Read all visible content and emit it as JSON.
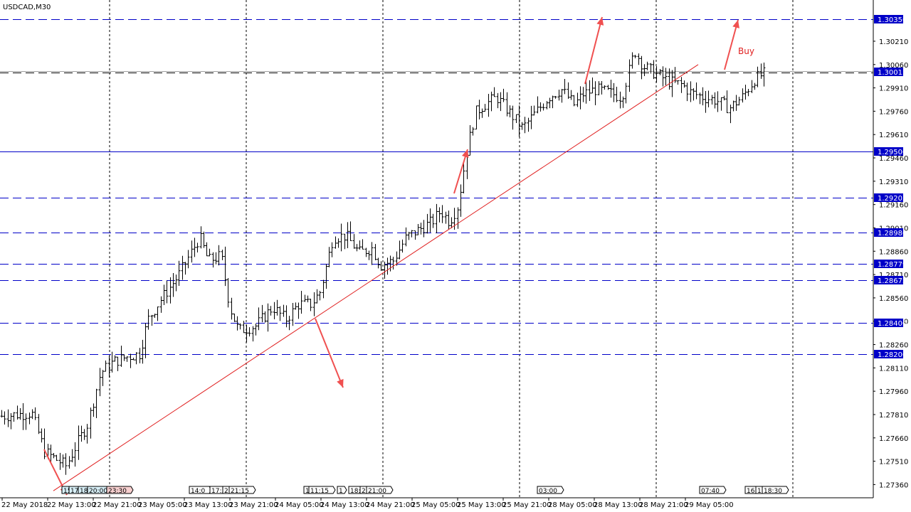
{
  "chart_data": {
    "type": "candlestick",
    "title": "USDCAD,M30",
    "y_axis": {
      "min": 1.27275,
      "max": 1.30475,
      "ticks": [
        1.3021,
        1.3006,
        1.2991,
        1.2976,
        1.2961,
        1.2946,
        1.2931,
        1.2916,
        1.2901,
        1.2886,
        1.2871,
        1.2856,
        1.2841,
        1.2826,
        1.2811,
        1.2796,
        1.2781,
        1.2766,
        1.2751,
        1.2736
      ]
    },
    "x_axis": {
      "labels": [
        "22 May 2018",
        "22 May 13:00",
        "22 May 21:00",
        "23 May 05:00",
        "23 May 13:00",
        "23 May 21:00",
        "24 May 05:00",
        "24 May 13:00",
        "24 May 21:00",
        "25 May 05:00",
        "25 May 13:00",
        "25 May 21:00",
        "28 May 05:00",
        "28 May 13:00",
        "28 May 21:00",
        "29 May 05:00"
      ]
    },
    "horizontal_levels": [
      {
        "value": 1.3035,
        "label": "1.30350",
        "style": "dashed"
      },
      {
        "value": 1.30015,
        "label": "1.30015",
        "style": "solid-gray"
      },
      {
        "value": 1.295,
        "label": "1.29500",
        "style": "solid"
      },
      {
        "value": 1.29205,
        "label": "1.29205",
        "style": "dashed"
      },
      {
        "value": 1.2898,
        "label": "1.28980",
        "style": "dashed"
      },
      {
        "value": 1.28779,
        "label": "1.28779",
        "style": "dashed"
      },
      {
        "value": 1.28672,
        "label": "1.28672",
        "style": "dashed"
      },
      {
        "value": 1.284,
        "label": "1.28400",
        "style": "dashed"
      },
      {
        "value": 1.282,
        "label": "1.28200",
        "style": "dashed"
      }
    ],
    "trendline": {
      "from": [
        0.0,
        1.2732
      ],
      "to": [
        1.0,
        1.3006
      ]
    },
    "annotations": [
      "Buy"
    ],
    "price_path": [
      [
        0,
        1.278
      ],
      [
        0.035,
        1.2782
      ],
      [
        0.05,
        1.2757
      ],
      [
        0.075,
        1.2748
      ],
      [
        0.09,
        1.2765
      ],
      [
        0.1,
        1.2775
      ],
      [
        0.115,
        1.2808
      ],
      [
        0.13,
        1.2815
      ],
      [
        0.145,
        1.2818
      ],
      [
        0.16,
        1.282
      ],
      [
        0.17,
        1.2842
      ],
      [
        0.185,
        1.2855
      ],
      [
        0.205,
        1.287
      ],
      [
        0.22,
        1.2885
      ],
      [
        0.23,
        1.2895
      ],
      [
        0.24,
        1.288
      ],
      [
        0.255,
        1.2883
      ],
      [
        0.265,
        1.285
      ],
      [
        0.275,
        1.2835
      ],
      [
        0.295,
        1.2838
      ],
      [
        0.315,
        1.285
      ],
      [
        0.33,
        1.2842
      ],
      [
        0.345,
        1.2852
      ],
      [
        0.36,
        1.2852
      ],
      [
        0.37,
        1.286
      ],
      [
        0.385,
        1.2895
      ],
      [
        0.4,
        1.2896
      ],
      [
        0.415,
        1.2885
      ],
      [
        0.43,
        1.2888
      ],
      [
        0.44,
        1.2877
      ],
      [
        0.455,
        1.288
      ],
      [
        0.47,
        1.2895
      ],
      [
        0.485,
        1.29
      ],
      [
        0.5,
        1.2905
      ],
      [
        0.51,
        1.2912
      ],
      [
        0.52,
        1.2905
      ],
      [
        0.53,
        1.2915
      ],
      [
        0.54,
        1.295
      ],
      [
        0.55,
        1.2975
      ],
      [
        0.56,
        1.298
      ],
      [
        0.575,
        1.2985
      ],
      [
        0.59,
        1.2975
      ],
      [
        0.605,
        1.2965
      ],
      [
        0.62,
        1.2975
      ],
      [
        0.635,
        1.2985
      ],
      [
        0.65,
        1.299
      ],
      [
        0.665,
        1.298
      ],
      [
        0.675,
        1.2987
      ],
      [
        0.69,
        1.299
      ],
      [
        0.705,
        1.2988
      ],
      [
        0.72,
        1.2985
      ],
      [
        0.735,
        1.3015
      ],
      [
        0.745,
        1.3005
      ],
      [
        0.76,
        1.3
      ],
      [
        0.775,
        1.2995
      ],
      [
        0.79,
        1.2993
      ],
      [
        0.8,
        1.2988
      ],
      [
        0.815,
        1.2985
      ],
      [
        0.83,
        1.2983
      ],
      [
        0.845,
        1.2978
      ],
      [
        0.86,
        1.2985
      ],
      [
        0.875,
        1.2997
      ],
      [
        0.885,
        1.3
      ]
    ]
  },
  "time_markers": [
    {
      "label": "15",
      "color": "#d8f0f8"
    },
    {
      "label": "17",
      "color": "#d8f0f8"
    },
    {
      "label": "18",
      "color": "#d8f0f8"
    },
    {
      "label": "20:00",
      "color": "#d8f0f8"
    },
    {
      "label": "23:30",
      "color": "#f8d0d0"
    },
    {
      "label": "14:0",
      "color": "#ffffff"
    },
    {
      "label": "17:3",
      "color": "#ffffff"
    },
    {
      "label": "2",
      "color": "#ffffff"
    },
    {
      "label": "21:15",
      "color": "#ffffff"
    },
    {
      "label": "1",
      "color": "#ffffff"
    },
    {
      "label": "11:15",
      "color": "#ffffff"
    },
    {
      "label": "1",
      "color": "#ffffff"
    },
    {
      "label": "18:",
      "color": "#ffffff"
    },
    {
      "label": "2",
      "color": "#ffffff"
    },
    {
      "label": "21:00",
      "color": "#ffffff"
    },
    {
      "label": "03:00",
      "color": "#ffffff"
    },
    {
      "label": "07:40",
      "color": "#ffffff"
    },
    {
      "label": "16",
      "color": "#ffffff"
    },
    {
      "label": "1",
      "color": "#ffffff"
    },
    {
      "label": "18:30",
      "color": "#ffffff"
    }
  ],
  "colors": {
    "level": "#0000c8",
    "trend": "#e02020",
    "arrow": "#f05050",
    "candle": "#000000",
    "grid": "#000000",
    "price_tag": "#0000c8"
  }
}
